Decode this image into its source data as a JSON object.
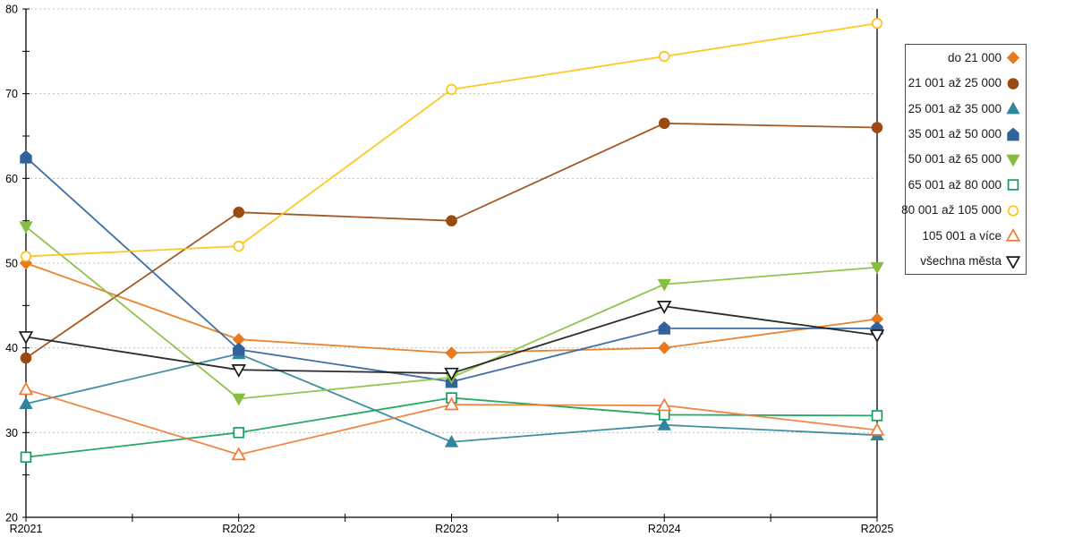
{
  "chart_data": {
    "type": "line",
    "title": "",
    "xlabel": "",
    "ylabel": "",
    "categories": [
      "R2021",
      "R2022",
      "R2023",
      "R2024",
      "R2025"
    ],
    "ylim": [
      20,
      80
    ],
    "ytick_major_step": 10,
    "ytick_minor_step": 5,
    "ytick_labels": [
      "20",
      "30",
      "40",
      "50",
      "60",
      "70",
      "80"
    ],
    "grid": "horizontal-dashed",
    "grid_color": "#bfbfbf",
    "axis_color": "#000000",
    "legend_position": "right-outside",
    "series": [
      {
        "name": "do 21 000",
        "color": "#e8791d",
        "marker": "diamond",
        "fill": "solid",
        "values": [
          50.0,
          41.0,
          39.4,
          40.0,
          43.4
        ]
      },
      {
        "name": "21 001 až 25 000",
        "color": "#9c4a0f",
        "marker": "circle",
        "fill": "solid",
        "values": [
          38.8,
          56.0,
          55.0,
          66.5,
          66.0
        ]
      },
      {
        "name": "25 001 až 35 000",
        "color": "#31859c",
        "marker": "triangle-up",
        "fill": "solid",
        "values": [
          33.4,
          39.3,
          28.9,
          30.9,
          29.7
        ]
      },
      {
        "name": "35 001 až 50 000",
        "color": "#31629c",
        "marker": "pentagon",
        "fill": "solid",
        "values": [
          62.5,
          39.8,
          36.0,
          42.3,
          42.3
        ]
      },
      {
        "name": "50 001 až 65 000",
        "color": "#86bf40",
        "marker": "triangle-down",
        "fill": "solid",
        "values": [
          54.3,
          34.0,
          36.5,
          47.5,
          49.5
        ]
      },
      {
        "name": "65 001 až 80 000",
        "color": "#12a15b",
        "marker": "square",
        "fill": "open",
        "values": [
          27.1,
          30.0,
          34.1,
          32.1,
          32.0
        ]
      },
      {
        "name": "80 001 až 105 000",
        "color": "#fec311",
        "marker": "circle",
        "fill": "open",
        "values": [
          50.8,
          52.0,
          70.5,
          74.4,
          78.3
        ]
      },
      {
        "name": "105 001 a více",
        "color": "#f07b33",
        "marker": "triangle-up",
        "fill": "open",
        "values": [
          35.1,
          27.4,
          33.3,
          33.2,
          30.3
        ]
      },
      {
        "name": "všechna města",
        "color": "#1a1a1a",
        "marker": "triangle-down",
        "fill": "open",
        "values": [
          41.3,
          37.4,
          37.0,
          44.9,
          41.5
        ]
      }
    ]
  }
}
